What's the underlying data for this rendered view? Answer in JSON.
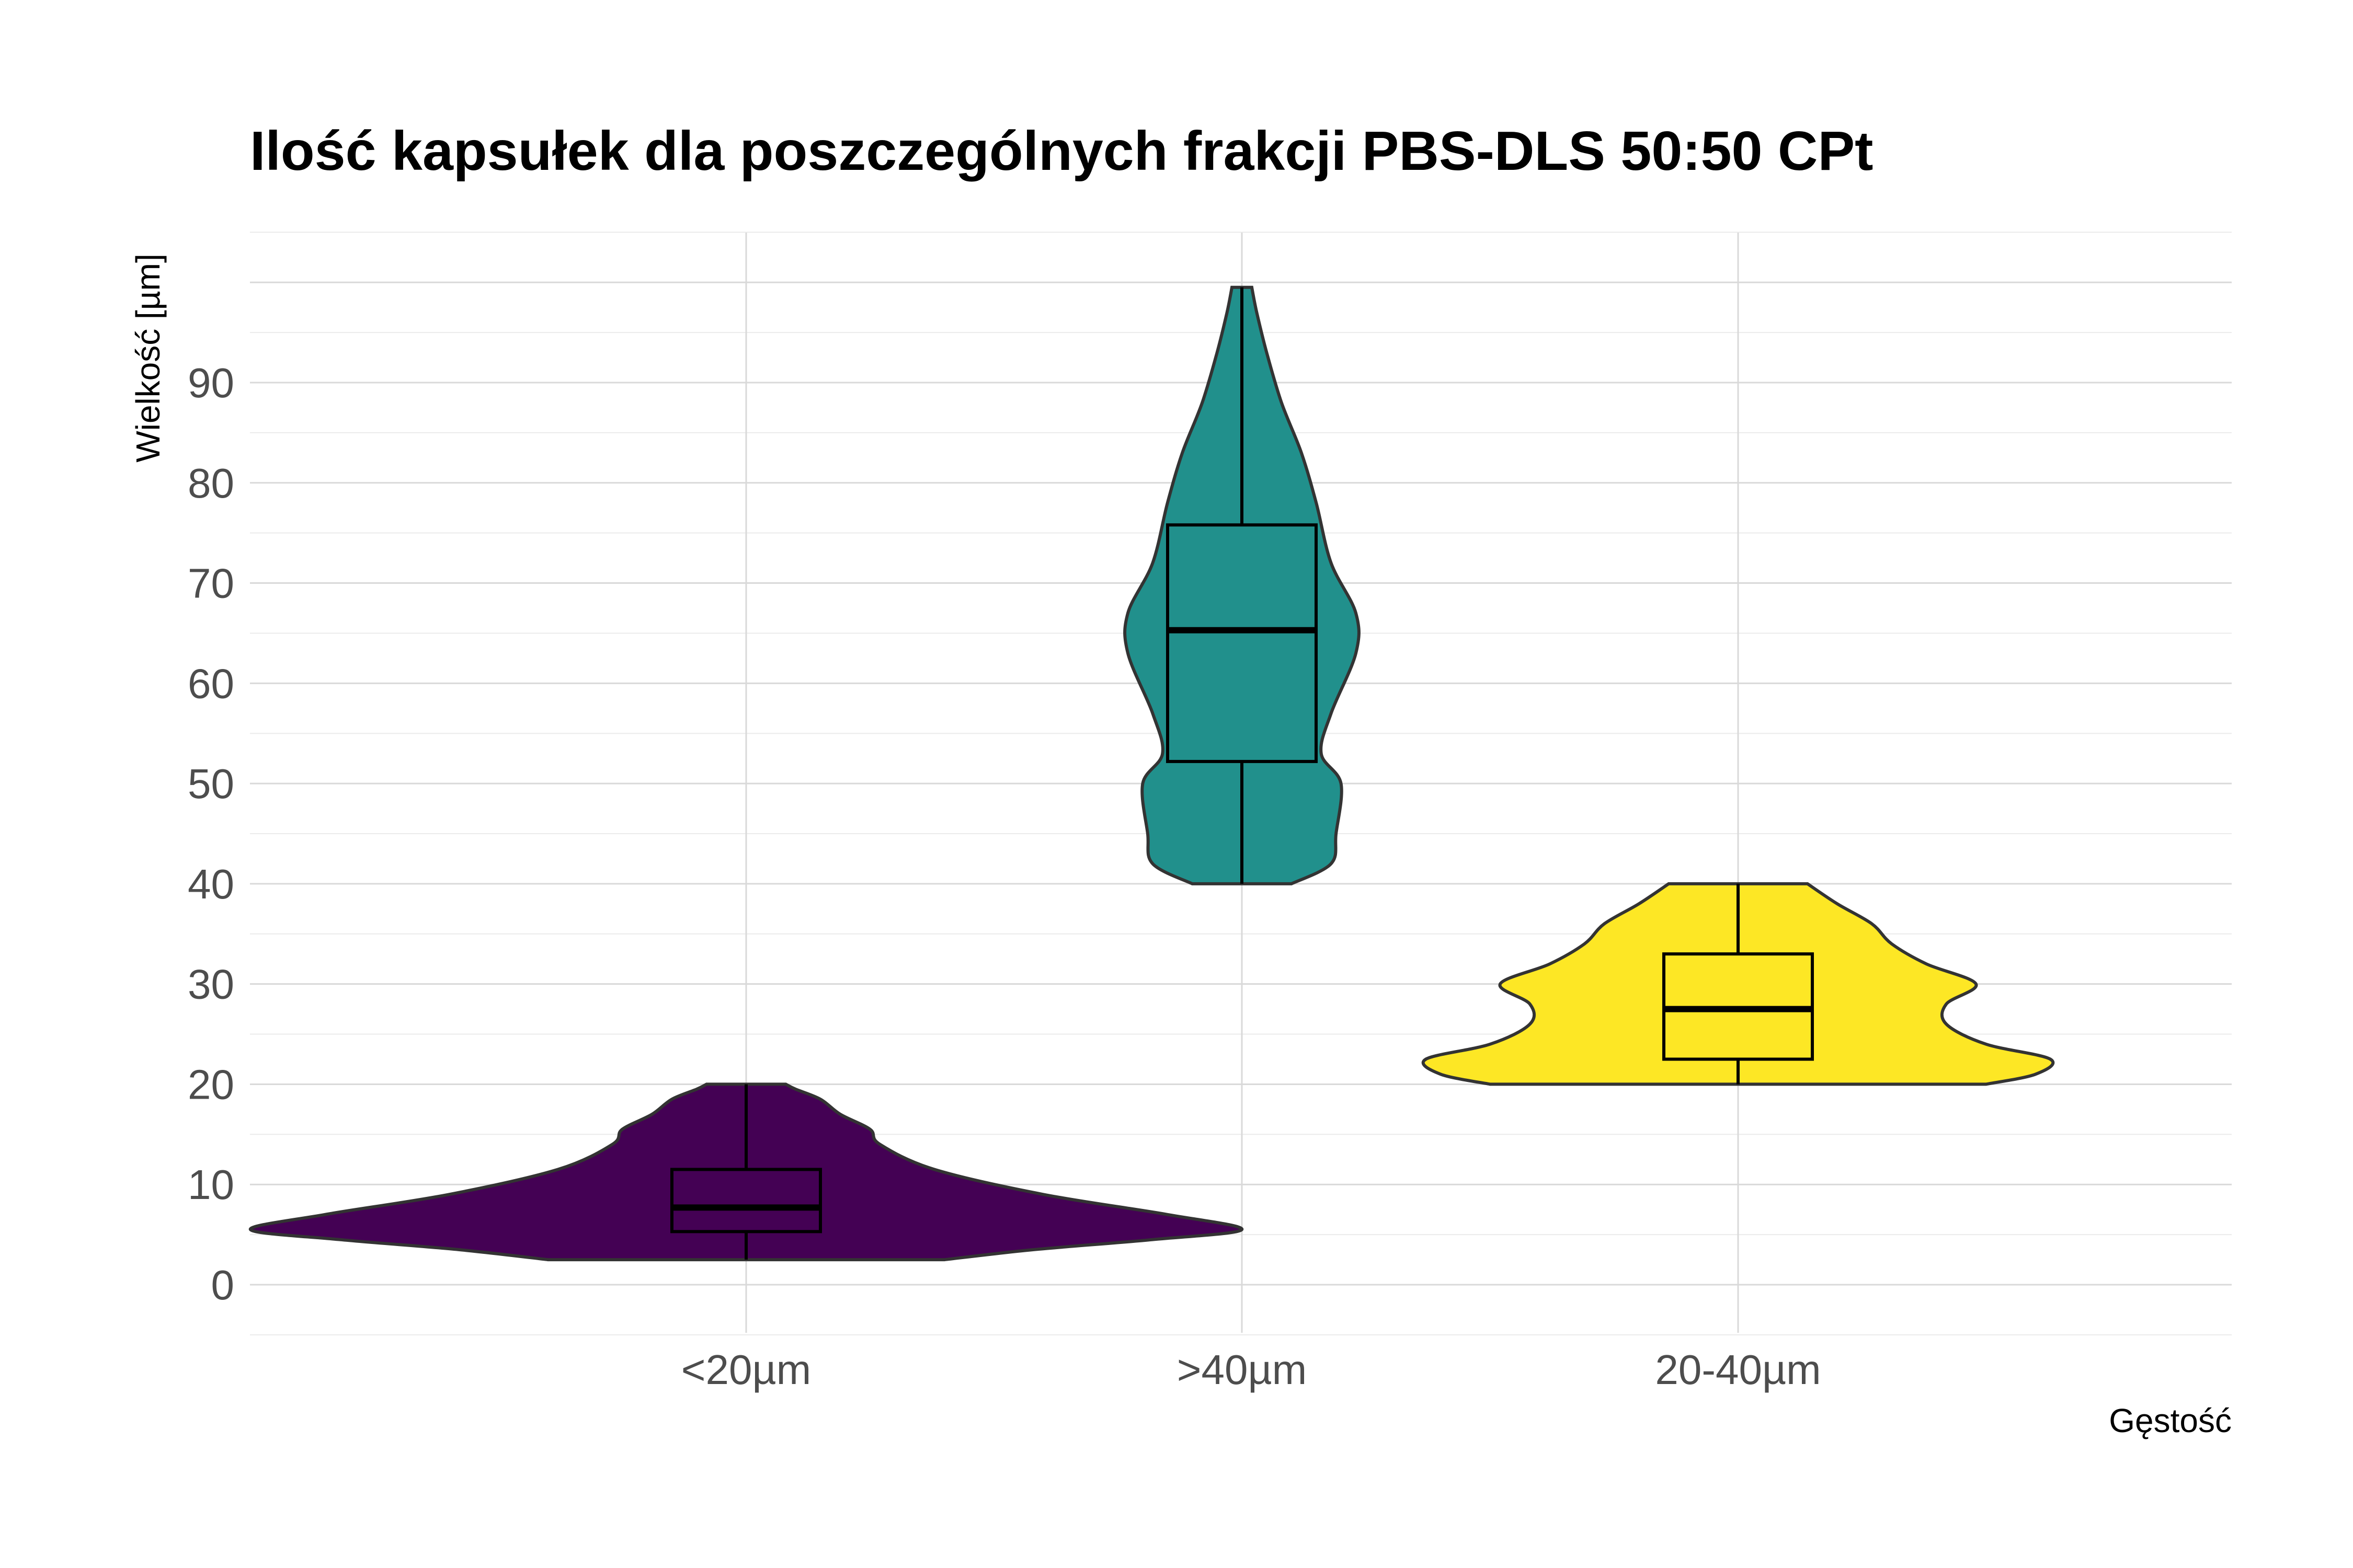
{
  "chart_data": {
    "type": "violin",
    "title": "Ilość kapsułek dla poszczególnych frakcji PBS-DLS 50:50 CPt",
    "xlabel": "Gęstość",
    "ylabel": "Wielkość [µm]",
    "ylim": [
      -5,
      105
    ],
    "yticks": [
      0,
      10,
      20,
      30,
      40,
      50,
      60,
      70,
      80,
      90
    ],
    "grid": true,
    "legend": "none",
    "categories": [
      "<20µm",
      ">40µm",
      "20-40µm"
    ],
    "series": [
      {
        "category": "<20µm",
        "color": "#440154",
        "box": {
          "min": 2.5,
          "q1": 5.3,
          "median": 7.7,
          "q3": 11.5,
          "max": 20
        },
        "density": [
          [
            2.5,
            0.4
          ],
          [
            3.5,
            0.58
          ],
          [
            4.5,
            0.82
          ],
          [
            5.5,
            1.0
          ],
          [
            7,
            0.85
          ],
          [
            9,
            0.6
          ],
          [
            11.5,
            0.38
          ],
          [
            14,
            0.27
          ],
          [
            15.5,
            0.25
          ],
          [
            17,
            0.19
          ],
          [
            18.5,
            0.15
          ],
          [
            19.5,
            0.1
          ],
          [
            20,
            0.08
          ]
        ]
      },
      {
        "category": ">40µm",
        "color": "#21908C",
        "box": {
          "min": 40,
          "q1": 52.2,
          "median": 65.3,
          "q3": 75.8,
          "max": 99.5
        },
        "density": [
          [
            40,
            0.1
          ],
          [
            42,
            0.18
          ],
          [
            45,
            0.19
          ],
          [
            50,
            0.2
          ],
          [
            53,
            0.16
          ],
          [
            57,
            0.18
          ],
          [
            63,
            0.23
          ],
          [
            67,
            0.23
          ],
          [
            72,
            0.18
          ],
          [
            78,
            0.15
          ],
          [
            83,
            0.12
          ],
          [
            88,
            0.08
          ],
          [
            93,
            0.05
          ],
          [
            97,
            0.03
          ],
          [
            99.5,
            0.02
          ]
        ]
      },
      {
        "category": "20-40µm",
        "color": "#FDE725",
        "box": {
          "min": 20,
          "q1": 22.5,
          "median": 27.5,
          "q3": 33,
          "max": 40
        },
        "density": [
          [
            20,
            0.5
          ],
          [
            21,
            0.6
          ],
          [
            22.5,
            0.63
          ],
          [
            24,
            0.5
          ],
          [
            26,
            0.42
          ],
          [
            28,
            0.42
          ],
          [
            30,
            0.48
          ],
          [
            32,
            0.38
          ],
          [
            34,
            0.31
          ],
          [
            36,
            0.27
          ],
          [
            38,
            0.2
          ],
          [
            40,
            0.14
          ]
        ]
      }
    ]
  }
}
